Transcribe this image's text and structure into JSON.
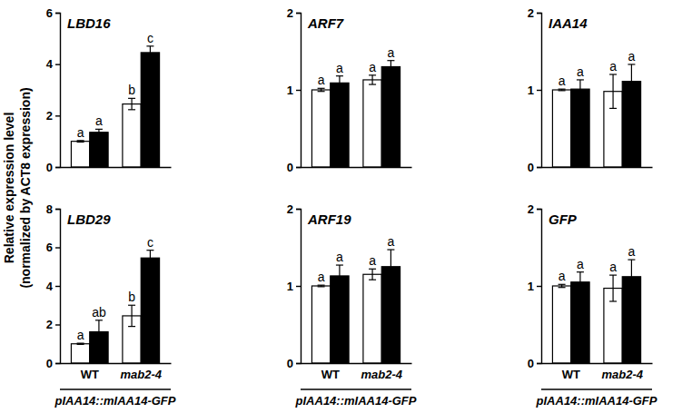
{
  "chart_data": [
    {
      "type": "bar",
      "title": "LBD16",
      "categories": [
        "WT",
        "mab2-4"
      ],
      "series": [
        {
          "color": "#ffffff",
          "values": [
            1.0,
            2.45
          ],
          "errors": [
            0.03,
            0.22
          ],
          "letters": [
            "a",
            "b"
          ]
        },
        {
          "color": "#000000",
          "values": [
            1.35,
            4.45
          ],
          "errors": [
            0.12,
            0.25
          ],
          "letters": [
            "a",
            "c"
          ]
        }
      ],
      "ylim": [
        0,
        6
      ],
      "yticks": [
        0,
        2,
        4,
        6
      ],
      "tick_labels": "y",
      "ylabel": [
        "Relative expression level",
        "(normalized by ACT8 expression)"
      ]
    },
    {
      "type": "bar",
      "title": "ARF7",
      "categories": [
        "WT",
        "mab2-4"
      ],
      "series": [
        {
          "color": "#ffffff",
          "values": [
            1.0,
            1.13
          ],
          "errors": [
            0.02,
            0.06
          ],
          "letters": [
            "a",
            "a"
          ]
        },
        {
          "color": "#000000",
          "values": [
            1.09,
            1.3
          ],
          "errors": [
            0.09,
            0.08
          ],
          "letters": [
            "a",
            "a"
          ]
        }
      ],
      "ylim": [
        0,
        2
      ],
      "yticks": [
        0,
        1,
        2
      ],
      "tick_labels": "y"
    },
    {
      "type": "bar",
      "title": "IAA14",
      "categories": [
        "WT",
        "mab2-4"
      ],
      "series": [
        {
          "color": "#ffffff",
          "values": [
            1.0,
            0.98
          ],
          "errors": [
            0.01,
            0.22
          ],
          "letters": [
            "a",
            "a"
          ]
        },
        {
          "color": "#000000",
          "values": [
            1.01,
            1.11
          ],
          "errors": [
            0.12,
            0.22
          ],
          "letters": [
            "a",
            "a"
          ]
        }
      ],
      "ylim": [
        0,
        2
      ],
      "yticks": [
        0,
        1,
        2
      ],
      "tick_labels": "y"
    },
    {
      "type": "bar",
      "title": "LBD29",
      "categories": [
        "WT",
        "mab2-4"
      ],
      "series": [
        {
          "color": "#ffffff",
          "values": [
            1.0,
            2.45
          ],
          "errors": [
            0.03,
            0.55
          ],
          "letters": [
            "a",
            "b"
          ]
        },
        {
          "color": "#000000",
          "values": [
            1.62,
            5.45
          ],
          "errors": [
            0.6,
            0.4
          ],
          "letters": [
            "ab",
            "c"
          ]
        }
      ],
      "ylim": [
        0,
        8
      ],
      "yticks": [
        0,
        2,
        4,
        6,
        8
      ],
      "xlabel": "pIAA14::mIAA14-GFP"
    },
    {
      "type": "bar",
      "title": "ARF19",
      "categories": [
        "WT",
        "mab2-4"
      ],
      "series": [
        {
          "color": "#ffffff",
          "values": [
            1.0,
            1.15
          ],
          "errors": [
            0.01,
            0.07
          ],
          "letters": [
            "a",
            "a"
          ]
        },
        {
          "color": "#000000",
          "values": [
            1.13,
            1.25
          ],
          "errors": [
            0.14,
            0.22
          ],
          "letters": [
            "a",
            "a"
          ]
        }
      ],
      "ylim": [
        0,
        2
      ],
      "yticks": [
        0,
        1,
        2
      ],
      "xlabel": "pIAA14::mIAA14-GFP"
    },
    {
      "type": "bar",
      "title": "GFP",
      "categories": [
        "WT",
        "mab2-4"
      ],
      "series": [
        {
          "color": "#ffffff",
          "values": [
            1.0,
            0.97
          ],
          "errors": [
            0.02,
            0.17
          ],
          "letters": [
            "a",
            "a"
          ]
        },
        {
          "color": "#000000",
          "values": [
            1.05,
            1.12
          ],
          "errors": [
            0.13,
            0.22
          ],
          "letters": [
            "a",
            "a"
          ]
        }
      ],
      "ylim": [
        0,
        2
      ],
      "yticks": [
        0,
        1,
        2
      ],
      "xlabel": "pIAA14::mIAA14-GFP"
    }
  ]
}
